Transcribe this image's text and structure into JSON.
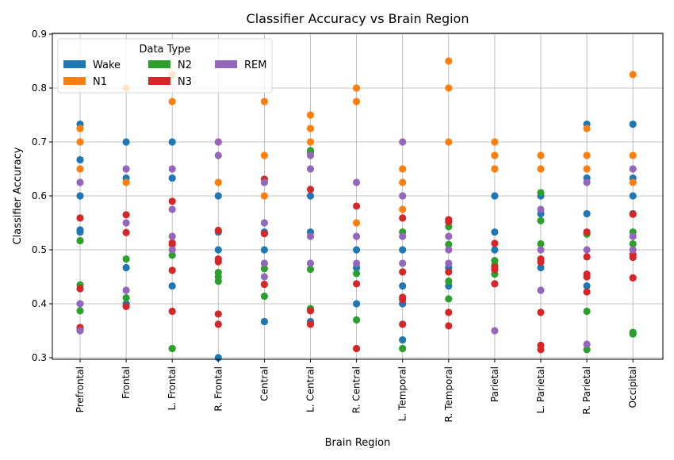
{
  "chart_data": {
    "type": "scatter",
    "title": "Classifier Accuracy vs Brain Region",
    "xlabel": "Brain Region",
    "ylabel": "Classifier Accuracy",
    "ylim": [
      0.3,
      0.9
    ],
    "yticks": [
      "0.3",
      "0.4",
      "0.5",
      "0.6",
      "0.7",
      "0.8",
      "0.9"
    ],
    "grid": true,
    "legend": {
      "title": "Data Type",
      "placement": "top-left",
      "columns": 3
    },
    "categories": [
      "Prefrontal",
      "Frontal",
      "L. Frontal",
      "R. Frontal",
      "Central",
      "L. Central",
      "R. Central",
      "L. Temporal",
      "R. Temporal",
      "Parietal",
      "L. Parietal",
      "R. Parietal",
      "Occipital"
    ],
    "series": [
      {
        "name": "Wake",
        "color": "#1f77b4",
        "points": [
          [
            0,
            0.733
          ],
          [
            0,
            0.667
          ],
          [
            0,
            0.6
          ],
          [
            0,
            0.537
          ],
          [
            0,
            0.533
          ],
          [
            1,
            0.7
          ],
          [
            1,
            0.633
          ],
          [
            1,
            0.467
          ],
          [
            1,
            0.4
          ],
          [
            2,
            0.7
          ],
          [
            2,
            0.633
          ],
          [
            2,
            0.433
          ],
          [
            3,
            0.6
          ],
          [
            3,
            0.533
          ],
          [
            3,
            0.5
          ],
          [
            3,
            0.3
          ],
          [
            4,
            0.533
          ],
          [
            4,
            0.5
          ],
          [
            4,
            0.367
          ],
          [
            5,
            0.6
          ],
          [
            5,
            0.533
          ],
          [
            5,
            0.367
          ],
          [
            6,
            0.5
          ],
          [
            6,
            0.467
          ],
          [
            6,
            0.4
          ],
          [
            7,
            0.5
          ],
          [
            7,
            0.433
          ],
          [
            7,
            0.4
          ],
          [
            7,
            0.333
          ],
          [
            8,
            0.467
          ],
          [
            8,
            0.433
          ],
          [
            9,
            0.6
          ],
          [
            9,
            0.533
          ],
          [
            9,
            0.5
          ],
          [
            10,
            0.6
          ],
          [
            10,
            0.567
          ],
          [
            10,
            0.467
          ],
          [
            11,
            0.733
          ],
          [
            11,
            0.633
          ],
          [
            11,
            0.567
          ],
          [
            11,
            0.433
          ],
          [
            12,
            0.733
          ],
          [
            12,
            0.633
          ],
          [
            12,
            0.6
          ],
          [
            12,
            0.567
          ]
        ]
      },
      {
        "name": "N1",
        "color": "#ff7f0e",
        "points": [
          [
            0,
            0.725
          ],
          [
            0,
            0.7
          ],
          [
            0,
            0.65
          ],
          [
            1,
            0.8
          ],
          [
            1,
            0.625
          ],
          [
            2,
            0.825
          ],
          [
            2,
            0.775
          ],
          [
            3,
            0.7
          ],
          [
            3,
            0.625
          ],
          [
            4,
            0.775
          ],
          [
            4,
            0.675
          ],
          [
            4,
            0.6
          ],
          [
            5,
            0.75
          ],
          [
            5,
            0.725
          ],
          [
            5,
            0.7
          ],
          [
            6,
            0.8
          ],
          [
            6,
            0.775
          ],
          [
            6,
            0.55
          ],
          [
            7,
            0.65
          ],
          [
            7,
            0.625
          ],
          [
            7,
            0.575
          ],
          [
            8,
            0.85
          ],
          [
            8,
            0.8
          ],
          [
            8,
            0.7
          ],
          [
            9,
            0.7
          ],
          [
            9,
            0.675
          ],
          [
            9,
            0.65
          ],
          [
            10,
            0.675
          ],
          [
            10,
            0.65
          ],
          [
            11,
            0.725
          ],
          [
            11,
            0.675
          ],
          [
            11,
            0.65
          ],
          [
            12,
            0.825
          ],
          [
            12,
            0.675
          ],
          [
            12,
            0.625
          ]
        ]
      },
      {
        "name": "N2",
        "color": "#2ca02c",
        "points": [
          [
            0,
            0.517
          ],
          [
            0,
            0.435
          ],
          [
            0,
            0.387
          ],
          [
            1,
            0.483
          ],
          [
            1,
            0.411
          ],
          [
            2,
            0.49
          ],
          [
            2,
            0.317
          ],
          [
            3,
            0.458
          ],
          [
            3,
            0.45
          ],
          [
            3,
            0.442
          ],
          [
            4,
            0.465
          ],
          [
            4,
            0.414
          ],
          [
            5,
            0.684
          ],
          [
            5,
            0.68
          ],
          [
            5,
            0.464
          ],
          [
            5,
            0.391
          ],
          [
            6,
            0.456
          ],
          [
            6,
            0.37
          ],
          [
            7,
            0.533
          ],
          [
            7,
            0.317
          ],
          [
            8,
            0.543
          ],
          [
            8,
            0.51
          ],
          [
            8,
            0.442
          ],
          [
            8,
            0.409
          ],
          [
            9,
            0.48
          ],
          [
            9,
            0.472
          ],
          [
            9,
            0.455
          ],
          [
            10,
            0.606
          ],
          [
            10,
            0.554
          ],
          [
            10,
            0.511
          ],
          [
            11,
            0.529
          ],
          [
            11,
            0.386
          ],
          [
            11,
            0.315
          ],
          [
            12,
            0.533
          ],
          [
            12,
            0.511
          ],
          [
            12,
            0.347
          ],
          [
            12,
            0.344
          ]
        ]
      },
      {
        "name": "N3",
        "color": "#d62728",
        "points": [
          [
            0,
            0.559
          ],
          [
            0,
            0.428
          ],
          [
            0,
            0.356
          ],
          [
            0,
            0.352
          ],
          [
            1,
            0.565
          ],
          [
            1,
            0.532
          ],
          [
            1,
            0.395
          ],
          [
            2,
            0.59
          ],
          [
            2,
            0.513
          ],
          [
            2,
            0.51
          ],
          [
            2,
            0.462
          ],
          [
            2,
            0.386
          ],
          [
            3,
            0.536
          ],
          [
            3,
            0.483
          ],
          [
            3,
            0.478
          ],
          [
            3,
            0.381
          ],
          [
            3,
            0.362
          ],
          [
            4,
            0.631
          ],
          [
            4,
            0.53
          ],
          [
            4,
            0.436
          ],
          [
            5,
            0.612
          ],
          [
            5,
            0.387
          ],
          [
            5,
            0.362
          ],
          [
            6,
            0.581
          ],
          [
            6,
            0.437
          ],
          [
            6,
            0.317
          ],
          [
            7,
            0.559
          ],
          [
            7,
            0.459
          ],
          [
            7,
            0.412
          ],
          [
            7,
            0.408
          ],
          [
            7,
            0.362
          ],
          [
            8,
            0.556
          ],
          [
            8,
            0.552
          ],
          [
            8,
            0.459
          ],
          [
            8,
            0.384
          ],
          [
            8,
            0.359
          ],
          [
            9,
            0.512
          ],
          [
            9,
            0.468
          ],
          [
            9,
            0.463
          ],
          [
            9,
            0.437
          ],
          [
            10,
            0.483
          ],
          [
            10,
            0.477
          ],
          [
            10,
            0.384
          ],
          [
            10,
            0.323
          ],
          [
            10,
            0.315
          ],
          [
            11,
            0.533
          ],
          [
            11,
            0.487
          ],
          [
            11,
            0.455
          ],
          [
            11,
            0.45
          ],
          [
            11,
            0.422
          ],
          [
            12,
            0.566
          ],
          [
            12,
            0.491
          ],
          [
            12,
            0.486
          ],
          [
            12,
            0.448
          ]
        ]
      },
      {
        "name": "REM",
        "color": "#9467bd",
        "points": [
          [
            0,
            0.625
          ],
          [
            0,
            0.4
          ],
          [
            0,
            0.35
          ],
          [
            1,
            0.65
          ],
          [
            1,
            0.55
          ],
          [
            1,
            0.425
          ],
          [
            2,
            0.65
          ],
          [
            2,
            0.575
          ],
          [
            2,
            0.525
          ],
          [
            2,
            0.5
          ],
          [
            3,
            0.675
          ],
          [
            3,
            0.7
          ],
          [
            4,
            0.625
          ],
          [
            4,
            0.55
          ],
          [
            4,
            0.475
          ],
          [
            4,
            0.45
          ],
          [
            5,
            0.675
          ],
          [
            5,
            0.65
          ],
          [
            5,
            0.525
          ],
          [
            5,
            0.475
          ],
          [
            6,
            0.625
          ],
          [
            6,
            0.525
          ],
          [
            6,
            0.475
          ],
          [
            7,
            0.7
          ],
          [
            7,
            0.6
          ],
          [
            7,
            0.525
          ],
          [
            7,
            0.475
          ],
          [
            8,
            0.525
          ],
          [
            8,
            0.5
          ],
          [
            8,
            0.475
          ],
          [
            9,
            0.35
          ],
          [
            10,
            0.575
          ],
          [
            10,
            0.5
          ],
          [
            10,
            0.425
          ],
          [
            11,
            0.625
          ],
          [
            11,
            0.5
          ],
          [
            11,
            0.325
          ],
          [
            12,
            0.65
          ],
          [
            12,
            0.525
          ],
          [
            12,
            0.5
          ]
        ]
      }
    ]
  }
}
